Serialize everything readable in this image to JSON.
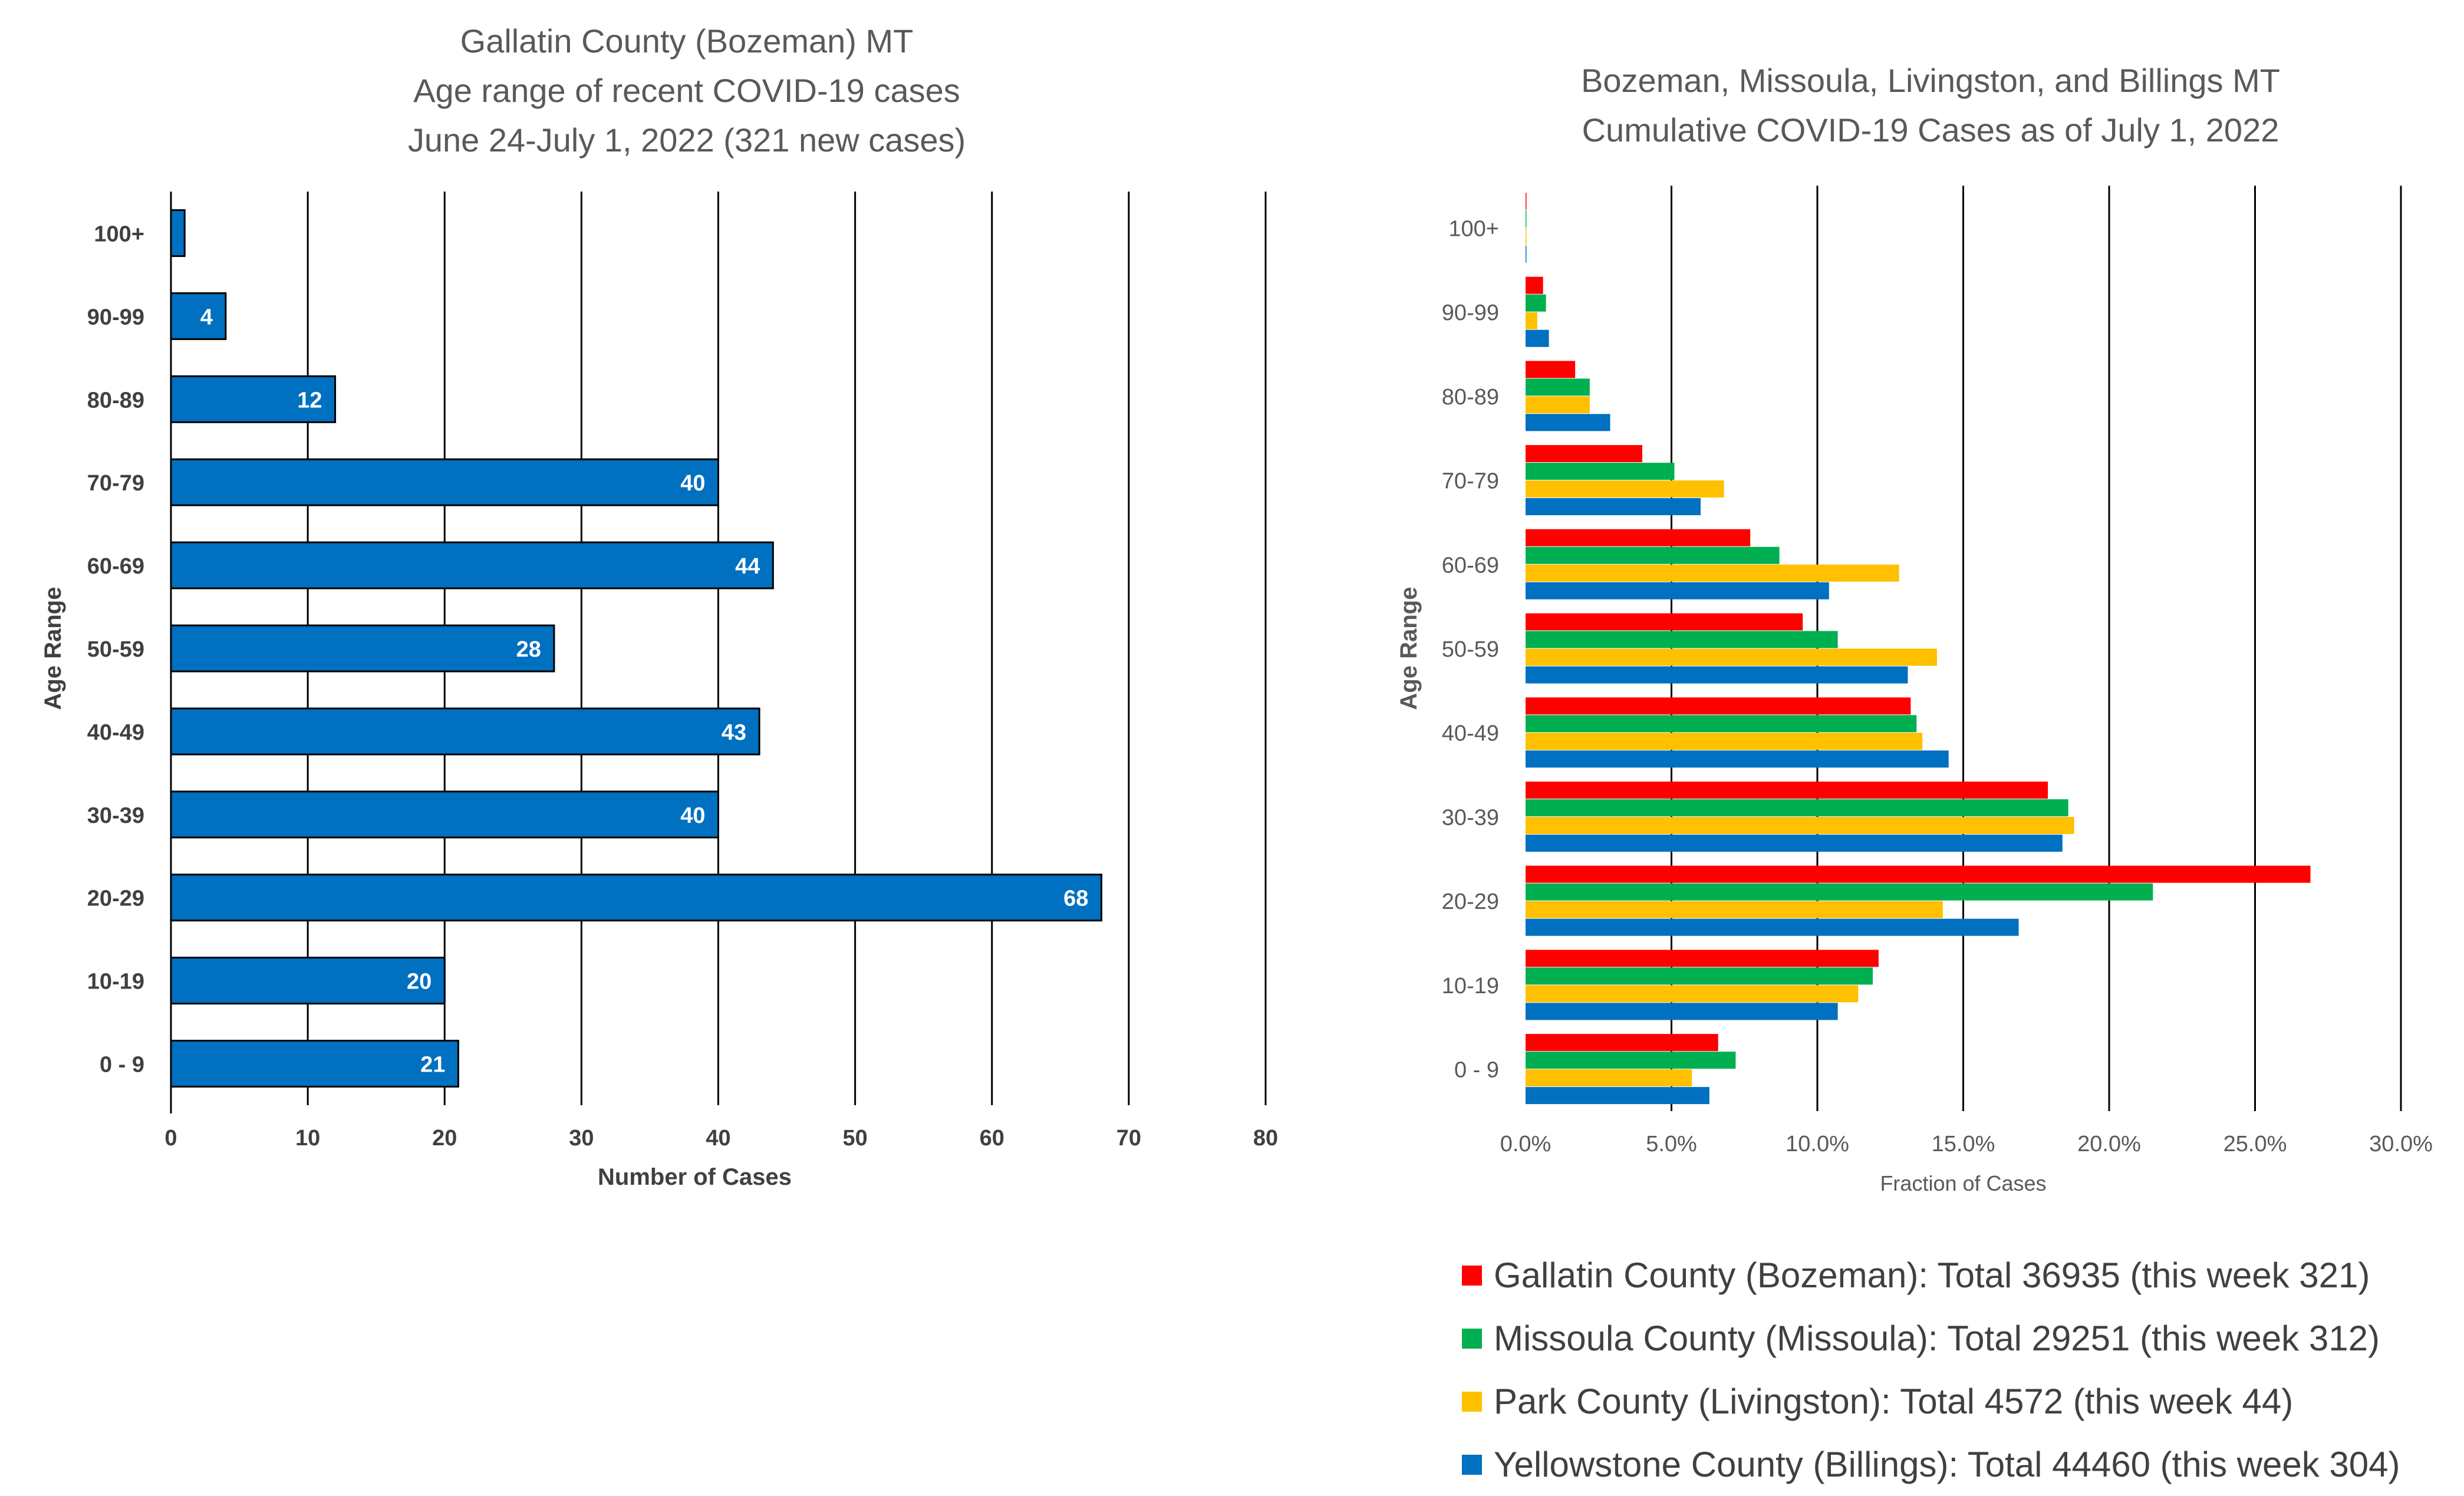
{
  "left_chart": {
    "title_lines": [
      "Gallatin County (Bozeman) MT",
      "Age range of recent COVID-19 cases",
      "June 24-July 1, 2022 (321 new cases)"
    ]
  },
  "right_chart": {
    "title_lines": [
      "Bozeman, Missoula, Livingston, and Billings MT",
      "Cumulative COVID-19 Cases as of July 1, 2022"
    ]
  },
  "chart_data": [
    {
      "type": "bar",
      "orientation": "horizontal",
      "title": "Gallatin County (Bozeman) MT / Age range of recent COVID-19 cases / June 24-July 1, 2022 (321 new cases)",
      "xlabel": "Number of Cases",
      "ylabel": "Age Range",
      "categories": [
        "0 - 9",
        "10-19",
        "20-29",
        "30-39",
        "40-49",
        "50-59",
        "60-69",
        "70-79",
        "80-89",
        "90-99",
        "100+"
      ],
      "values": [
        21,
        20,
        68,
        40,
        43,
        28,
        44,
        40,
        12,
        4,
        1
      ],
      "data_labels": [
        "21",
        "20",
        "68",
        "40",
        "43",
        "28",
        "44",
        "40",
        "12",
        "4",
        ""
      ],
      "xlim": [
        0,
        80
      ],
      "xticks": [
        0,
        10,
        20,
        30,
        40,
        50,
        60,
        70,
        80
      ],
      "xtick_labels": [
        "0",
        "10",
        "20",
        "30",
        "40",
        "50",
        "60",
        "70",
        "80"
      ],
      "grid": "vertical",
      "color": "#0070C0"
    },
    {
      "type": "bar",
      "orientation": "horizontal",
      "title": "Bozeman, Missoula, Livingston, and Billings MT / Cumulative COVID-19 Cases as of July 1, 2022",
      "xlabel": "Fraction of Cases",
      "ylabel": "Age Range",
      "categories": [
        "0 - 9",
        "10-19",
        "20-29",
        "30-39",
        "40-49",
        "50-59",
        "60-69",
        "70-79",
        "80-89",
        "90-99",
        "100+"
      ],
      "xlim": [
        0,
        30
      ],
      "xticks": [
        0,
        5,
        10,
        15,
        20,
        25,
        30
      ],
      "xtick_labels": [
        "0.0%",
        "5.0%",
        "10.0%",
        "15.0%",
        "20.0%",
        "25.0%",
        "30.0%"
      ],
      "grid": "vertical",
      "legend_position": "bottom",
      "series": [
        {
          "name": "Gallatin County (Bozeman): Total 36935 (this week 321)",
          "color": "#FF0000",
          "values": [
            6.6,
            12.1,
            26.9,
            17.9,
            13.2,
            9.5,
            7.7,
            4.0,
            1.7,
            0.6,
            0.02
          ]
        },
        {
          "name": "Missoula County (Missoula): Total 29251 (this week 312)",
          "color": "#00B050",
          "values": [
            7.2,
            11.9,
            21.5,
            18.6,
            13.4,
            10.7,
            8.7,
            5.1,
            2.2,
            0.7,
            0.02
          ]
        },
        {
          "name": "Park County (Livingston): Total 4572 (this week 44)",
          "color": "#FFC000",
          "values": [
            5.7,
            11.4,
            14.3,
            18.8,
            13.6,
            14.1,
            12.8,
            6.8,
            2.2,
            0.4,
            0.02
          ]
        },
        {
          "name": "Yellowstone County (Billings): Total 44460 (this week 304)",
          "color": "#0070C0",
          "values": [
            6.3,
            10.7,
            16.9,
            18.4,
            14.5,
            13.1,
            10.4,
            6.0,
            2.9,
            0.8,
            0.02
          ]
        }
      ]
    }
  ]
}
